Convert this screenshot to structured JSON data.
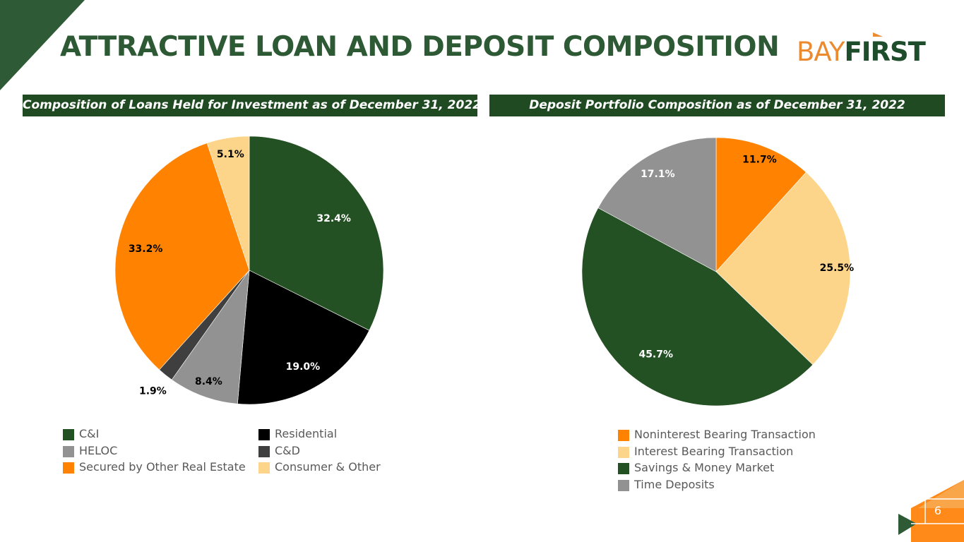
{
  "slide": {
    "title": "ATTRACTIVE LOAN AND DEPOSIT COMPOSITION",
    "page_number": "6",
    "logo": {
      "part1": "BAY",
      "part2": "FIRST"
    }
  },
  "colors": {
    "dark_green": "#1f4a22",
    "title_green": "#2d5a34",
    "orange": "#ff8300",
    "light_orange": "#fdd58a",
    "gray": "#929292",
    "black": "#000000",
    "dark_gray": "#3f3f3f"
  },
  "chart_data": [
    {
      "type": "pie",
      "title": "Composition of Loans Held for Investment as of December 31, 2022",
      "categories": [
        "C&I",
        "Residential",
        "HELOC",
        "C&D",
        "Secured by Other Real Estate",
        "Consumer & Other"
      ],
      "values": [
        32.4,
        19.0,
        8.4,
        1.9,
        33.2,
        5.1
      ],
      "labels": [
        "32.4%",
        "19.0%",
        "8.4%",
        "1.9%",
        "33.2%",
        "5.1%"
      ],
      "colors": [
        "#235123",
        "#000000",
        "#929292",
        "#3f3f3f",
        "#ff8300",
        "#fdd58a"
      ],
      "legend_position": "bottom"
    },
    {
      "type": "pie",
      "title": "Deposit Portfolio Composition as of December 31, 2022",
      "categories": [
        "Noninterest Bearing Transaction",
        "Interest Bearing Transaction",
        "Savings & Money Market",
        "Time Deposits"
      ],
      "values": [
        11.7,
        25.5,
        45.7,
        17.1
      ],
      "labels": [
        "11.7%",
        "25.5%",
        "45.7%",
        "17.1%"
      ],
      "colors": [
        "#ff8300",
        "#fdd58a",
        "#235123",
        "#929292"
      ],
      "legend_position": "bottom"
    }
  ]
}
